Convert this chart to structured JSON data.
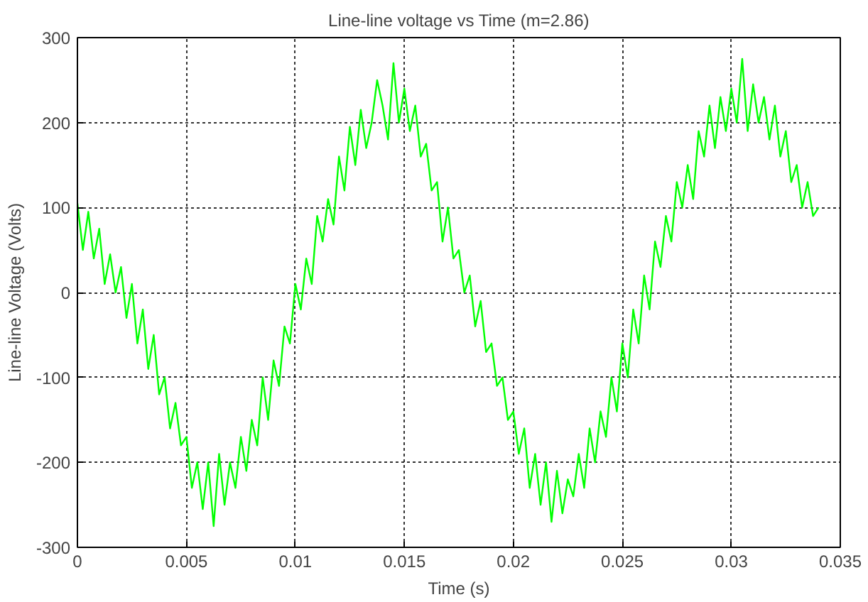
{
  "chart_data": {
    "type": "line",
    "title": "Line-line voltage vs Time (m=2.86)",
    "xlabel": "Time (s)",
    "ylabel": "Line-line Voltage (Volts)",
    "x": [
      0,
      0.00025,
      0.0005,
      0.00075,
      0.001,
      0.00125,
      0.0015,
      0.00175,
      0.002,
      0.00225,
      0.0025,
      0.00275,
      0.003,
      0.00325,
      0.0035,
      0.00375,
      0.004,
      0.00425,
      0.0045,
      0.00475,
      0.005,
      0.00525,
      0.0055,
      0.00575,
      0.006,
      0.00625,
      0.0065,
      0.00675,
      0.007,
      0.00725,
      0.0075,
      0.00775,
      0.008,
      0.00825,
      0.0085,
      0.00875,
      0.009,
      0.00925,
      0.0095,
      0.00975,
      0.01,
      0.01025,
      0.0105,
      0.01075,
      0.011,
      0.01125,
      0.0115,
      0.01175,
      0.012,
      0.01225,
      0.0125,
      0.01275,
      0.013,
      0.01325,
      0.0135,
      0.01375,
      0.014,
      0.01425,
      0.0145,
      0.01475,
      0.015,
      0.01525,
      0.0155,
      0.01575,
      0.016,
      0.01625,
      0.0165,
      0.01675,
      0.017,
      0.01725,
      0.0175,
      0.01775,
      0.018,
      0.01825,
      0.0185,
      0.01875,
      0.019,
      0.01925,
      0.0195,
      0.01975,
      0.02,
      0.02025,
      0.0205,
      0.02075,
      0.021,
      0.02125,
      0.0215,
      0.02175,
      0.022,
      0.02225,
      0.0225,
      0.02275,
      0.023,
      0.02325,
      0.0235,
      0.02375,
      0.024,
      0.02425,
      0.0245,
      0.02475,
      0.025,
      0.02525,
      0.0255,
      0.02575,
      0.026,
      0.02625,
      0.0265,
      0.02675,
      0.027,
      0.02725,
      0.0275,
      0.02775,
      0.028,
      0.02825,
      0.0285,
      0.02875,
      0.029,
      0.02925,
      0.0295,
      0.02975,
      0.03,
      0.03025,
      0.0305,
      0.03075,
      0.031,
      0.03125,
      0.0315,
      0.03175,
      0.032,
      0.03225,
      0.0325,
      0.03275,
      0.033,
      0.03325,
      0.0335,
      0.03375,
      0.034
    ],
    "series": [
      {
        "color": "#00ff00",
        "values": [
          105,
          50,
          95,
          40,
          75,
          10,
          45,
          0,
          30,
          -30,
          10,
          -60,
          -20,
          -90,
          -50,
          -120,
          -100,
          -160,
          -130,
          -180,
          -170,
          -230,
          -200,
          -255,
          -200,
          -275,
          -190,
          -250,
          -200,
          -230,
          -170,
          -210,
          -150,
          -180,
          -100,
          -150,
          -80,
          -110,
          -40,
          -60,
          10,
          -20,
          40,
          10,
          90,
          60,
          110,
          80,
          160,
          120,
          195,
          150,
          215,
          170,
          200,
          250,
          220,
          180,
          270,
          200,
          240,
          190,
          220,
          160,
          175,
          120,
          130,
          60,
          100,
          40,
          50,
          0,
          20,
          -40,
          -10,
          -70,
          -60,
          -110,
          -100,
          -150,
          -140,
          -190,
          -160,
          -230,
          -190,
          -250,
          -200,
          -270,
          -210,
          -260,
          -220,
          -240,
          -190,
          -230,
          -160,
          -200,
          -140,
          -170,
          -100,
          -140,
          -60,
          -100,
          -20,
          -60,
          20,
          -20,
          60,
          30,
          90,
          60,
          130,
          100,
          150,
          110,
          190,
          160,
          220,
          170,
          230,
          190,
          240,
          200,
          275,
          190,
          245,
          200,
          230,
          180,
          220,
          160,
          190,
          130,
          150,
          100,
          130,
          90,
          100
        ]
      }
    ],
    "xlim": [
      0,
      0.035
    ],
    "ylim": [
      -300,
      300
    ],
    "xticks": [
      0,
      0.005,
      0.01,
      0.015,
      0.02,
      0.025,
      0.03,
      0.035
    ],
    "yticks": [
      -300,
      -200,
      -100,
      0,
      100,
      200,
      300
    ],
    "grid": true,
    "line_style": "solid"
  }
}
